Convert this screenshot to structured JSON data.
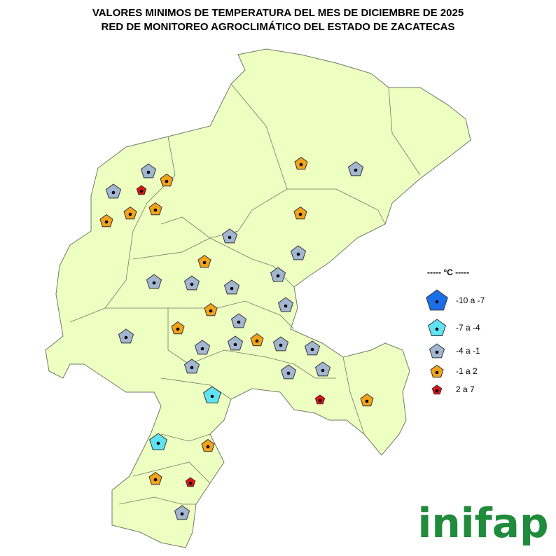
{
  "title": [
    "VALORES MINIMOS DE TEMPERATURA DEL MES DE DICIEMBRE DE 2025",
    "RED DE MONITOREO AGROCLIMÁTICO DEL ESTADO DE ZACATECAS"
  ],
  "legend": {
    "title": "----- °C -----",
    "items": [
      {
        "label": "-10 a -7",
        "color": "#1a6fe8"
      },
      {
        "label": "-7 a -4",
        "color": "#5fe3f2"
      },
      {
        "label": "-4 a -1",
        "color": "#a3b6d1"
      },
      {
        "label": "-1 a 2",
        "color": "#f2a31c"
      },
      {
        "label": "2 a 7",
        "color": "#e31212"
      }
    ]
  },
  "logo": "inifap"
}
